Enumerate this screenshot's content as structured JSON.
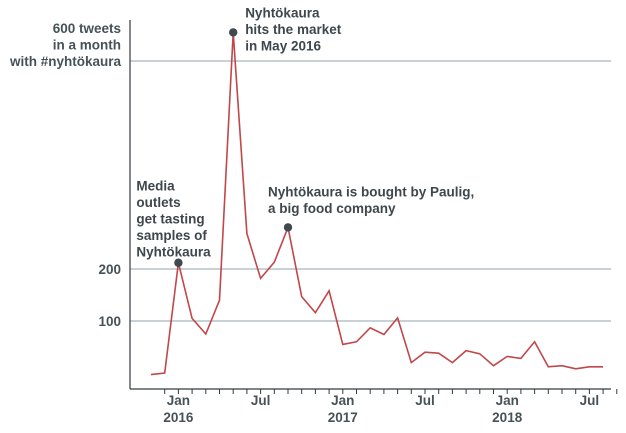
{
  "chart_data": {
    "type": "line",
    "title": "",
    "xlabel": "",
    "ylabel": "",
    "color": "#c0474a",
    "grid": true,
    "ylim": [
      -100,
      680
    ],
    "x": [
      "2015-11",
      "2015-12",
      "2016-01",
      "2016-02",
      "2016-03",
      "2016-04",
      "2016-05",
      "2016-06",
      "2016-07",
      "2016-08",
      "2016-09",
      "2016-10",
      "2016-11",
      "2016-12",
      "2017-01",
      "2017-02",
      "2017-03",
      "2017-04",
      "2017-05",
      "2017-06",
      "2017-07",
      "2017-08",
      "2017-09",
      "2017-10",
      "2017-11",
      "2017-12",
      "2018-01",
      "2018-02",
      "2018-03",
      "2018-04",
      "2018-05",
      "2018-06",
      "2018-07",
      "2018-08"
    ],
    "values": [
      -3,
      0,
      212,
      105,
      75,
      140,
      655,
      268,
      182,
      213,
      280,
      147,
      116,
      158,
      55,
      60,
      87,
      74,
      106,
      20,
      40,
      38,
      20,
      43,
      37,
      14,
      32,
      28,
      60,
      12,
      14,
      8,
      12,
      12
    ],
    "y_ticks": [
      {
        "value": 100,
        "label": "100"
      },
      {
        "value": 200,
        "label": "200"
      },
      {
        "value": 600,
        "label": "600 tweets\nin a month\nwith #nyhtökaura"
      }
    ],
    "x_ticks": [
      {
        "x": "2016-01",
        "label": "Jan\n2016"
      },
      {
        "x": "2016-07",
        "label": "Jul"
      },
      {
        "x": "2017-01",
        "label": "Jan\n2017"
      },
      {
        "x": "2017-07",
        "label": "Jul"
      },
      {
        "x": "2018-01",
        "label": "Jan\n2018"
      },
      {
        "x": "2018-07",
        "label": "Jul"
      }
    ],
    "annotations": [
      {
        "x": "2016-01",
        "value": 212,
        "text": "Media\noutlets\nget tasting\nsamples of\nNyhtökaura"
      },
      {
        "x": "2016-05",
        "value": 655,
        "text": "Nyhtökaura\nhits the market\nin May 2016"
      },
      {
        "x": "2016-09",
        "value": 280,
        "text": "Nyhtökaura is bought by Paulig,\na big food company"
      }
    ]
  }
}
